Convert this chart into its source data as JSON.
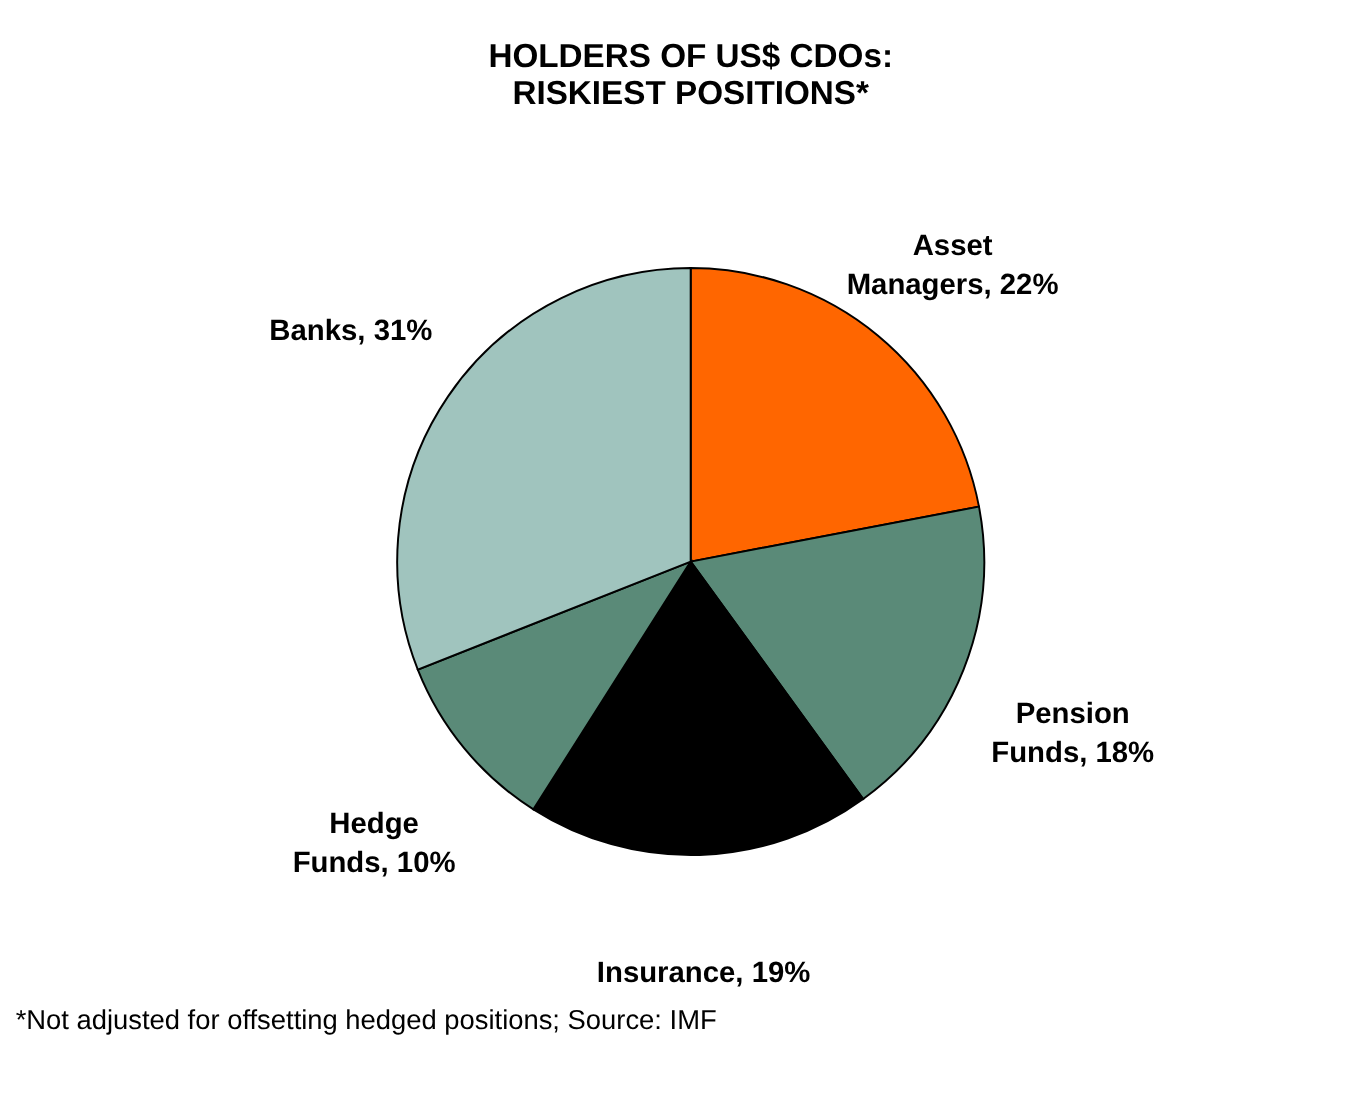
{
  "chart_data": {
    "type": "pie",
    "title": "HOLDERS OF US$ CDOs: RISKIEST POSITIONS*",
    "categories": [
      "Asset Managers",
      "Pension Funds",
      "Insurance",
      "Hedge Funds",
      "Banks"
    ],
    "values": [
      22,
      18,
      19,
      10,
      31
    ],
    "colors": [
      "#ff6600",
      "#5a8a78",
      "#000000",
      "#5a8a78",
      "#a0c4be"
    ],
    "value_labels": [
      "22%",
      "18%",
      "19%",
      "10%",
      "31%"
    ],
    "annotations": [
      "*Not adjusted for offsetting hedged positions; Source: IMF"
    ],
    "legend": false
  }
}
